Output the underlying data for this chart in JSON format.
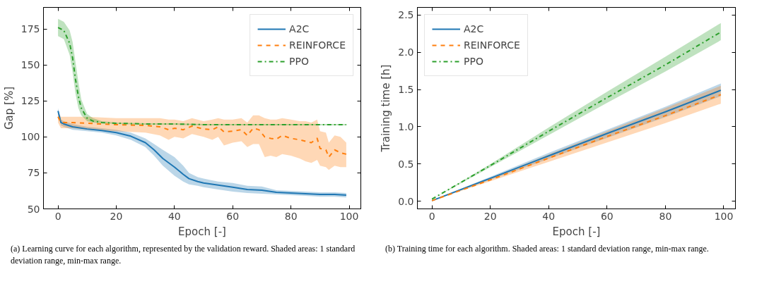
{
  "chart_data": [
    {
      "type": "line",
      "xlabel": "Epoch [-]",
      "ylabel": "Gap [%]",
      "xlim": [
        -5,
        104
      ],
      "ylim": [
        50,
        190
      ],
      "xticks": [
        0,
        20,
        40,
        60,
        80,
        100
      ],
      "yticks": [
        50,
        75,
        100,
        125,
        150,
        175
      ],
      "legend": "top right",
      "grid": false,
      "annotations": [
        "(a) Learning curve for each algorithm, represented by the validation reward. Shaded areas: 1 standard deviation range, min-max range."
      ],
      "series": [
        {
          "name": "A2C",
          "color": "#1f77b4",
          "line_style": "solid",
          "x": [
            0,
            1,
            2,
            5,
            10,
            15,
            20,
            25,
            30,
            33,
            36,
            40,
            43,
            45,
            48,
            50,
            55,
            60,
            65,
            70,
            75,
            80,
            85,
            90,
            95,
            99
          ],
          "values": [
            118,
            110,
            109,
            107,
            105.5,
            104.5,
            103,
            100.5,
            96,
            91,
            85,
            79,
            74,
            71,
            69,
            68,
            66.5,
            65,
            63.5,
            63,
            61.5,
            61,
            60.5,
            60,
            60,
            59.5
          ],
          "lower": [
            116,
            108,
            107,
            105,
            104,
            103,
            101,
            98,
            93,
            87,
            80,
            73,
            69,
            67,
            66,
            65,
            63.5,
            62,
            61,
            60.5,
            60,
            59.5,
            59,
            58.5,
            58.5,
            58
          ],
          "upper": [
            120,
            112,
            111,
            109,
            107,
            106,
            105,
            103,
            99,
            95,
            91,
            86,
            80,
            75,
            72,
            71,
            69,
            68,
            66,
            65.5,
            63,
            62.5,
            62,
            61.5,
            61.5,
            61
          ]
        },
        {
          "name": "REINFORCE",
          "color": "#ff7f0e",
          "line_style": "dashed",
          "x": [
            0,
            1,
            5,
            10,
            20,
            30,
            35,
            38,
            40,
            43,
            46,
            50,
            53,
            55,
            57,
            60,
            63,
            65,
            67,
            69,
            71,
            73,
            75,
            77,
            80,
            83,
            85,
            87,
            89,
            90,
            92,
            93,
            95,
            97,
            99
          ],
          "values": [
            114,
            110,
            110,
            109.5,
            108.5,
            108,
            107,
            105,
            106,
            105,
            107.5,
            105.5,
            105,
            107,
            103.5,
            104,
            105,
            101,
            106,
            105,
            100,
            99,
            98.5,
            101,
            99,
            98,
            97,
            96,
            99,
            92,
            91,
            86,
            91,
            89,
            88
          ],
          "lower": [
            110,
            106,
            106,
            105,
            104,
            103,
            101,
            98,
            100,
            99,
            102,
            100,
            98,
            100,
            94,
            96,
            97,
            93,
            95,
            95,
            86,
            87,
            86,
            88,
            87,
            85,
            83,
            82,
            84,
            80,
            79,
            77,
            80,
            79,
            79
          ],
          "upper": [
            117,
            114,
            114,
            114,
            113,
            113,
            113,
            112,
            112,
            111,
            113,
            111,
            112,
            113,
            112,
            112,
            113,
            110,
            115,
            115,
            113,
            112,
            112,
            113,
            112,
            111,
            111,
            110,
            112,
            104,
            103,
            96,
            101,
            100,
            96
          ]
        },
        {
          "name": "PPO",
          "color": "#2ca02c",
          "line_style": "dashdot",
          "x": [
            0,
            2,
            4,
            5,
            6,
            7,
            8,
            10,
            12,
            15,
            20,
            30,
            40,
            50,
            60,
            70,
            80,
            90,
            99
          ],
          "values": [
            176,
            174,
            165,
            155,
            140,
            128,
            120,
            113,
            111,
            110,
            109.5,
            109,
            109,
            108.5,
            108.5,
            108.5,
            108.5,
            108.5,
            108.5
          ],
          "lower": [
            170,
            168,
            157,
            145,
            130,
            120,
            115,
            111,
            110,
            109.5,
            109,
            108.5,
            108.5,
            108,
            108,
            108,
            108,
            108,
            108
          ],
          "upper": [
            182,
            180,
            174,
            166,
            152,
            138,
            126,
            116,
            113,
            111,
            110,
            109.5,
            109.5,
            109,
            109,
            109,
            109,
            109,
            109
          ]
        }
      ]
    },
    {
      "type": "line",
      "xlabel": "Epoch [-]",
      "ylabel": "Training time [h]",
      "xlim": [
        -5,
        104
      ],
      "ylim": [
        -0.1,
        2.6
      ],
      "xticks": [
        0,
        20,
        40,
        60,
        80,
        100
      ],
      "yticks": [
        {
          "value": 0,
          "label": "0.0"
        },
        0.5,
        {
          "value": 1,
          "label": "1.0"
        },
        1.5,
        {
          "value": 2,
          "label": "2.0"
        },
        2.5
      ],
      "legend": "top left",
      "grid": false,
      "annotations": [
        "(b) Training time for each algorithm. Shaded areas: 1 standard deviation range, min-max range."
      ],
      "series": [
        {
          "name": "A2C",
          "color": "#1f77b4",
          "line_style": "solid",
          "x": [
            0,
            20,
            40,
            60,
            80,
            99
          ],
          "values": [
            0.01,
            0.31,
            0.61,
            0.91,
            1.2,
            1.49
          ],
          "lower": [
            0.01,
            0.29,
            0.57,
            0.85,
            1.13,
            1.41
          ],
          "upper": [
            0.01,
            0.33,
            0.65,
            0.96,
            1.27,
            1.58
          ]
        },
        {
          "name": "REINFORCE",
          "color": "#ff7f0e",
          "line_style": "dashed",
          "x": [
            0,
            20,
            40,
            60,
            80,
            99
          ],
          "values": [
            0.01,
            0.29,
            0.58,
            0.87,
            1.15,
            1.43
          ],
          "lower": [
            0.01,
            0.27,
            0.53,
            0.79,
            1.05,
            1.31
          ],
          "upper": [
            0.01,
            0.31,
            0.63,
            0.94,
            1.25,
            1.55
          ]
        },
        {
          "name": "PPO",
          "color": "#2ca02c",
          "line_style": "dashdot",
          "x": [
            0,
            20,
            40,
            60,
            80,
            99
          ],
          "values": [
            0.03,
            0.48,
            0.94,
            1.39,
            1.83,
            2.27
          ],
          "lower": [
            0.03,
            0.46,
            0.89,
            1.32,
            1.74,
            2.16
          ],
          "upper": [
            0.03,
            0.5,
            0.99,
            1.47,
            1.94,
            2.39
          ]
        }
      ]
    }
  ]
}
